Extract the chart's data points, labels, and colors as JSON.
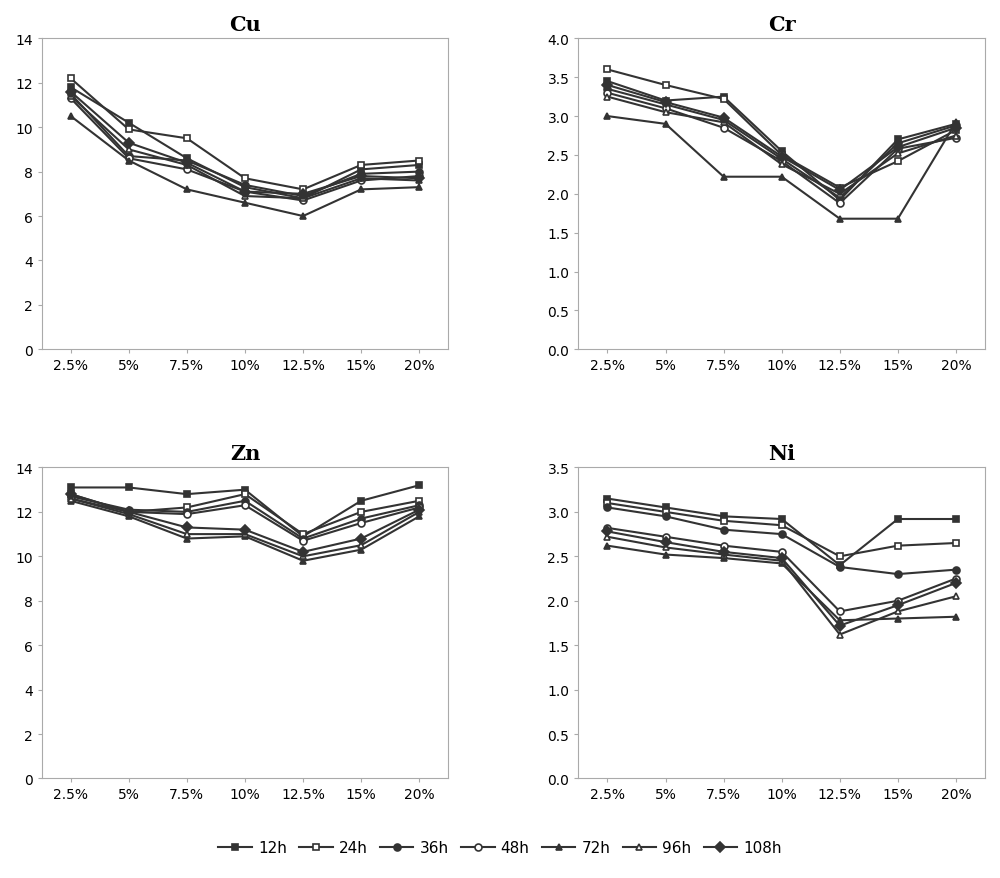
{
  "x_labels": [
    "2.5%",
    "5%",
    "7.5%",
    "10%",
    "12.5%",
    "15%",
    "20%"
  ],
  "series_labels": [
    "12h",
    "24h",
    "36h",
    "48h",
    "72h",
    "96h",
    "108h"
  ],
  "Cu": {
    "title": "Cu",
    "ylim": [
      0,
      14
    ],
    "yticks": [
      0,
      2,
      4,
      6,
      8,
      10,
      12,
      14
    ],
    "series": {
      "12h": [
        11.8,
        10.2,
        8.6,
        7.3,
        6.8,
        8.1,
        8.3
      ],
      "24h": [
        12.2,
        9.9,
        9.5,
        7.7,
        7.2,
        8.3,
        8.5
      ],
      "36h": [
        11.5,
        8.7,
        8.5,
        7.4,
        6.9,
        7.9,
        8.0
      ],
      "48h": [
        11.3,
        8.6,
        8.1,
        7.1,
        6.7,
        7.6,
        7.8
      ],
      "72h": [
        10.5,
        8.5,
        7.2,
        6.6,
        6.0,
        7.2,
        7.3
      ],
      "96h": [
        11.4,
        9.0,
        8.3,
        6.9,
        6.8,
        7.7,
        7.6
      ],
      "108h": [
        11.6,
        9.3,
        8.4,
        7.1,
        7.0,
        7.8,
        7.7
      ]
    }
  },
  "Cr": {
    "title": "Cr",
    "ylim": [
      0.0,
      4.0
    ],
    "yticks": [
      0.0,
      0.5,
      1.0,
      1.5,
      2.0,
      2.5,
      3.0,
      3.5,
      4.0
    ],
    "series": {
      "12h": [
        3.45,
        3.2,
        3.25,
        2.55,
        1.92,
        2.7,
        2.9
      ],
      "24h": [
        3.6,
        3.4,
        3.22,
        2.5,
        2.08,
        2.42,
        2.82
      ],
      "36h": [
        3.35,
        3.15,
        2.95,
        2.45,
        1.95,
        2.65,
        2.88
      ],
      "48h": [
        3.3,
        3.1,
        2.85,
        2.42,
        1.88,
        2.58,
        2.72
      ],
      "72h": [
        3.0,
        2.9,
        2.22,
        2.22,
        1.68,
        1.68,
        2.92
      ],
      "96h": [
        3.25,
        3.05,
        2.92,
        2.38,
        2.0,
        2.52,
        2.75
      ],
      "108h": [
        3.4,
        3.18,
        2.98,
        2.48,
        2.05,
        2.6,
        2.85
      ]
    }
  },
  "Zn": {
    "title": "Zn",
    "ylim": [
      0,
      14
    ],
    "yticks": [
      0,
      2,
      4,
      6,
      8,
      10,
      12,
      14
    ],
    "series": {
      "12h": [
        13.1,
        13.1,
        12.8,
        13.0,
        10.9,
        12.5,
        13.2
      ],
      "24h": [
        12.8,
        12.0,
        12.2,
        12.8,
        11.0,
        12.0,
        12.5
      ],
      "36h": [
        12.7,
        12.1,
        12.0,
        12.5,
        10.8,
        11.7,
        12.3
      ],
      "48h": [
        12.6,
        12.0,
        11.9,
        12.3,
        10.7,
        11.5,
        12.2
      ],
      "72h": [
        12.5,
        11.8,
        10.8,
        10.9,
        9.8,
        10.3,
        11.8
      ],
      "96h": [
        12.6,
        11.9,
        11.0,
        11.0,
        10.0,
        10.5,
        12.0
      ],
      "108h": [
        12.8,
        12.0,
        11.3,
        11.2,
        10.2,
        10.8,
        12.1
      ]
    }
  },
  "Ni": {
    "title": "Ni",
    "ylim": [
      0.0,
      3.5
    ],
    "yticks": [
      0.0,
      0.5,
      1.0,
      1.5,
      2.0,
      2.5,
      3.0,
      3.5
    ],
    "series": {
      "12h": [
        3.15,
        3.05,
        2.95,
        2.92,
        2.4,
        2.92,
        2.92
      ],
      "24h": [
        3.1,
        3.0,
        2.9,
        2.85,
        2.5,
        2.62,
        2.65
      ],
      "36h": [
        3.05,
        2.95,
        2.8,
        2.75,
        2.38,
        2.3,
        2.35
      ],
      "48h": [
        2.82,
        2.72,
        2.62,
        2.55,
        1.88,
        2.0,
        2.25
      ],
      "72h": [
        2.62,
        2.52,
        2.48,
        2.42,
        1.78,
        1.8,
        1.82
      ],
      "96h": [
        2.72,
        2.6,
        2.52,
        2.45,
        1.62,
        1.88,
        2.05
      ],
      "108h": [
        2.78,
        2.66,
        2.55,
        2.48,
        1.72,
        1.95,
        2.2
      ]
    }
  },
  "line_color": "#333333",
  "background_color": "#ffffff",
  "title_fontsize": 15,
  "tick_fontsize": 10,
  "legend_fontsize": 11,
  "line_width": 1.5,
  "marker_size": 5
}
